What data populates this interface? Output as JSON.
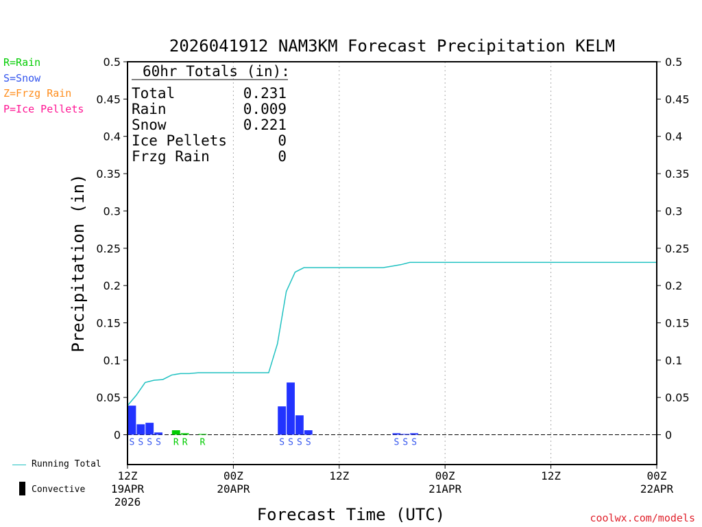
{
  "legend_types": [
    {
      "label": "R=Rain",
      "color": "#00cc00"
    },
    {
      "label": "S=Snow",
      "color": "#3355ee"
    },
    {
      "label": "Z=Frzg Rain",
      "color": "#ff8c1a"
    },
    {
      "label": "P=Ice Pellets",
      "color": "#ff1493"
    }
  ],
  "bottom_legend": {
    "running_total": "Running Total",
    "convective": "Convective",
    "running_total_color": "#1fc1c1",
    "convective_color": "#000000"
  },
  "credit": "coolwx.com/models",
  "chart_data": {
    "type": "bar",
    "title": "2026041912 NAM3KM Forecast Precipitation KELM",
    "xlabel": "Forecast Time (UTC)",
    "ylabel": "Precipitation (in)",
    "ylim": [
      -0.04,
      0.5
    ],
    "xlim_hours": [
      0,
      60
    ],
    "y_ticks": [
      0,
      0.05,
      0.1,
      0.15,
      0.2,
      0.25,
      0.3,
      0.35,
      0.4,
      0.45,
      0.5
    ],
    "y_tick_labels": [
      "0",
      "0.05",
      "0.1",
      "0.15",
      "0.2",
      "0.25",
      "0.3",
      "0.35",
      "0.4",
      "0.45",
      "0.5"
    ],
    "x_ticks": [
      {
        "hour": 0,
        "lines": [
          "12Z",
          "19APR",
          "2026"
        ]
      },
      {
        "hour": 12,
        "lines": [
          "00Z",
          "20APR"
        ]
      },
      {
        "hour": 24,
        "lines": [
          "12Z"
        ]
      },
      {
        "hour": 36,
        "lines": [
          "00Z",
          "21APR"
        ]
      },
      {
        "hour": 48,
        "lines": [
          "12Z"
        ]
      },
      {
        "hour": 60,
        "lines": [
          "00Z",
          "22APR"
        ]
      }
    ],
    "grid": "dotted vertical",
    "totals": {
      "header": "60hr Totals (in):",
      "rows": [
        {
          "label": "Total",
          "value": "0.231"
        },
        {
          "label": "Rain",
          "value": "0.009"
        },
        {
          "label": "Snow",
          "value": "0.221"
        },
        {
          "label": "Ice Pellets",
          "value": "0"
        },
        {
          "label": "Frzg Rain",
          "value": "0"
        }
      ]
    },
    "bars": [
      {
        "hour": 0,
        "value": 0.039,
        "type": "S",
        "color": "#2233ff"
      },
      {
        "hour": 1,
        "value": 0.014,
        "type": "S",
        "color": "#2233ff"
      },
      {
        "hour": 2,
        "value": 0.016,
        "type": "S",
        "color": "#2233ff"
      },
      {
        "hour": 3,
        "value": 0.003,
        "type": "S",
        "color": "#2233ff"
      },
      {
        "hour": 5,
        "value": 0.006,
        "type": "R",
        "color": "#00cc00"
      },
      {
        "hour": 6,
        "value": 0.002,
        "type": "R",
        "color": "#00cc00"
      },
      {
        "hour": 8,
        "value": 0.001,
        "type": "R",
        "color": "#00cc00"
      },
      {
        "hour": 17,
        "value": 0.038,
        "type": "S",
        "color": "#2233ff"
      },
      {
        "hour": 18,
        "value": 0.07,
        "type": "S",
        "color": "#2233ff"
      },
      {
        "hour": 19,
        "value": 0.026,
        "type": "S",
        "color": "#2233ff"
      },
      {
        "hour": 20,
        "value": 0.006,
        "type": "S",
        "color": "#2233ff"
      },
      {
        "hour": 30,
        "value": 0.002,
        "type": "S",
        "color": "#2233ff"
      },
      {
        "hour": 31,
        "value": 0.001,
        "type": "S",
        "color": "#2233ff"
      },
      {
        "hour": 32,
        "value": 0.002,
        "type": "S",
        "color": "#2233ff"
      }
    ],
    "running_total": {
      "x": [
        0,
        1,
        2,
        3,
        4,
        5,
        6,
        7,
        8,
        9,
        10,
        11,
        12,
        13,
        14,
        15,
        16,
        17,
        18,
        19,
        20,
        21,
        22,
        23,
        24,
        25,
        26,
        27,
        28,
        29,
        30,
        31,
        32,
        33,
        34,
        35,
        36,
        40,
        48,
        60
      ],
      "y": [
        0.039,
        0.053,
        0.07,
        0.073,
        0.074,
        0.08,
        0.082,
        0.082,
        0.083,
        0.083,
        0.083,
        0.083,
        0.083,
        0.083,
        0.083,
        0.083,
        0.083,
        0.122,
        0.192,
        0.218,
        0.224,
        0.224,
        0.224,
        0.224,
        0.224,
        0.224,
        0.224,
        0.224,
        0.224,
        0.224,
        0.226,
        0.228,
        0.231,
        0.231,
        0.231,
        0.231,
        0.231,
        0.231,
        0.231,
        0.231
      ]
    }
  }
}
